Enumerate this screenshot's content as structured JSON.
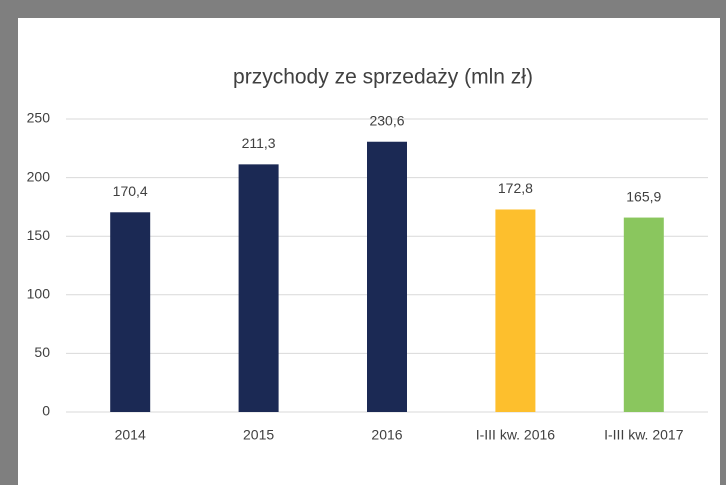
{
  "chart_data": {
    "type": "bar",
    "title": "przychody ze sprzedaży (mln zł)",
    "categories": [
      "2014",
      "2015",
      "2016",
      "I-III kw. 2016",
      "I-III kw. 2017"
    ],
    "values": [
      170.4,
      211.3,
      230.6,
      172.8,
      165.9
    ],
    "value_labels": [
      "170,4",
      "211,3",
      "230,6",
      "172,8",
      "165,9"
    ],
    "colors": [
      "#1b2954",
      "#1b2954",
      "#1b2954",
      "#fdbf2d",
      "#8ac65e"
    ],
    "ylim": [
      0,
      250
    ],
    "yticks": [
      0,
      50,
      100,
      150,
      200,
      250
    ],
    "grid": true
  }
}
